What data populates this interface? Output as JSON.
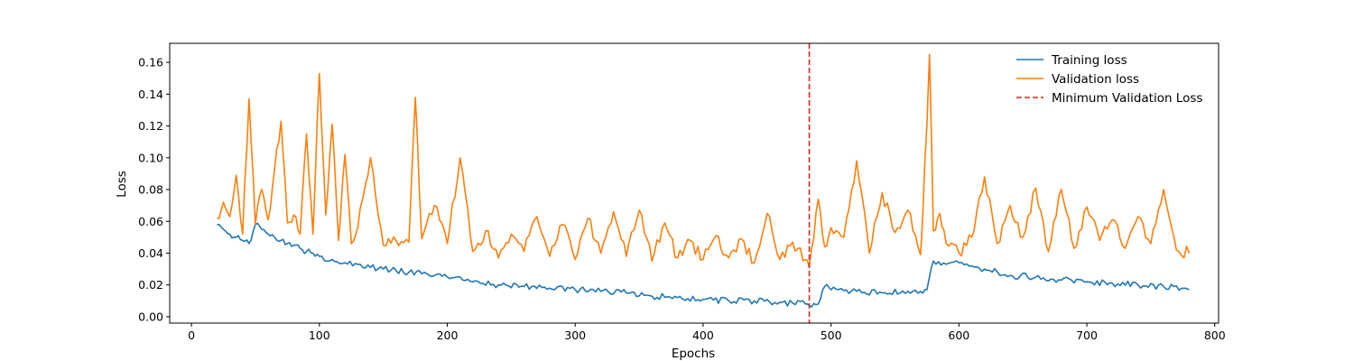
{
  "chart_data": {
    "type": "line",
    "title": "",
    "xlabel": "Epochs",
    "ylabel": "Loss",
    "xlim": [
      -17,
      803
    ],
    "ylim": [
      -0.004,
      0.172
    ],
    "x_ticks": [
      0,
      100,
      200,
      300,
      400,
      500,
      600,
      700,
      800
    ],
    "y_ticks": [
      0.0,
      0.02,
      0.04,
      0.06,
      0.08,
      0.1,
      0.12,
      0.14,
      0.16
    ],
    "y_tick_labels": [
      "0.00",
      "0.02",
      "0.04",
      "0.06",
      "0.08",
      "0.10",
      "0.12",
      "0.14",
      "0.16"
    ],
    "grid": false,
    "legend_position": "top-right",
    "series": [
      {
        "name": "Training loss",
        "color": "#1f77b4",
        "x": [
          20,
          25,
          30,
          35,
          40,
          45,
          50,
          55,
          60,
          65,
          70,
          75,
          80,
          85,
          90,
          95,
          100,
          110,
          120,
          130,
          140,
          150,
          160,
          170,
          180,
          190,
          200,
          220,
          240,
          260,
          280,
          300,
          320,
          340,
          360,
          380,
          400,
          420,
          440,
          460,
          480,
          483,
          490,
          495,
          500,
          520,
          540,
          560,
          570,
          575,
          580,
          590,
          600,
          620,
          640,
          660,
          680,
          700,
          720,
          740,
          760,
          780
        ],
        "y": [
          0.058,
          0.055,
          0.052,
          0.05,
          0.048,
          0.046,
          0.058,
          0.055,
          0.052,
          0.05,
          0.048,
          0.046,
          0.045,
          0.043,
          0.041,
          0.04,
          0.038,
          0.036,
          0.034,
          0.033,
          0.031,
          0.03,
          0.029,
          0.028,
          0.027,
          0.026,
          0.025,
          0.022,
          0.02,
          0.019,
          0.018,
          0.017,
          0.016,
          0.015,
          0.013,
          0.012,
          0.011,
          0.01,
          0.01,
          0.009,
          0.008,
          0.007,
          0.008,
          0.019,
          0.017,
          0.016,
          0.015,
          0.016,
          0.016,
          0.017,
          0.035,
          0.033,
          0.034,
          0.03,
          0.026,
          0.025,
          0.023,
          0.022,
          0.021,
          0.02,
          0.019,
          0.017
        ]
      },
      {
        "name": "Validation loss",
        "color": "#ff7f0e",
        "x": [
          20,
          25,
          30,
          35,
          40,
          45,
          50,
          55,
          60,
          65,
          70,
          75,
          80,
          85,
          90,
          95,
          100,
          105,
          110,
          115,
          120,
          125,
          130,
          140,
          150,
          160,
          170,
          175,
          180,
          190,
          200,
          210,
          220,
          230,
          240,
          250,
          260,
          270,
          280,
          290,
          300,
          310,
          320,
          330,
          340,
          350,
          360,
          370,
          380,
          390,
          400,
          410,
          420,
          430,
          440,
          450,
          460,
          470,
          480,
          483,
          490,
          495,
          500,
          510,
          520,
          530,
          540,
          550,
          560,
          570,
          575,
          577,
          580,
          585,
          590,
          600,
          610,
          620,
          630,
          640,
          650,
          660,
          670,
          680,
          690,
          700,
          710,
          720,
          730,
          740,
          750,
          760,
          770,
          780
        ],
        "y": [
          0.062,
          0.072,
          0.063,
          0.089,
          0.052,
          0.137,
          0.058,
          0.08,
          0.061,
          0.093,
          0.123,
          0.059,
          0.064,
          0.052,
          0.115,
          0.052,
          0.153,
          0.064,
          0.121,
          0.048,
          0.102,
          0.046,
          0.056,
          0.1,
          0.045,
          0.048,
          0.047,
          0.138,
          0.049,
          0.07,
          0.046,
          0.1,
          0.041,
          0.054,
          0.037,
          0.052,
          0.041,
          0.063,
          0.038,
          0.058,
          0.036,
          0.062,
          0.04,
          0.066,
          0.038,
          0.067,
          0.035,
          0.059,
          0.037,
          0.048,
          0.036,
          0.051,
          0.037,
          0.049,
          0.034,
          0.065,
          0.036,
          0.047,
          0.036,
          0.031,
          0.074,
          0.044,
          0.056,
          0.05,
          0.098,
          0.04,
          0.078,
          0.053,
          0.067,
          0.039,
          0.121,
          0.165,
          0.054,
          0.065,
          0.046,
          0.04,
          0.05,
          0.088,
          0.046,
          0.07,
          0.05,
          0.081,
          0.041,
          0.08,
          0.043,
          0.069,
          0.048,
          0.061,
          0.043,
          0.063,
          0.046,
          0.08,
          0.042,
          0.04
        ]
      }
    ],
    "vlines": [
      {
        "name": "Minimum Validation Loss",
        "x": 483,
        "color": "#d62728",
        "style": "dashed"
      }
    ]
  }
}
